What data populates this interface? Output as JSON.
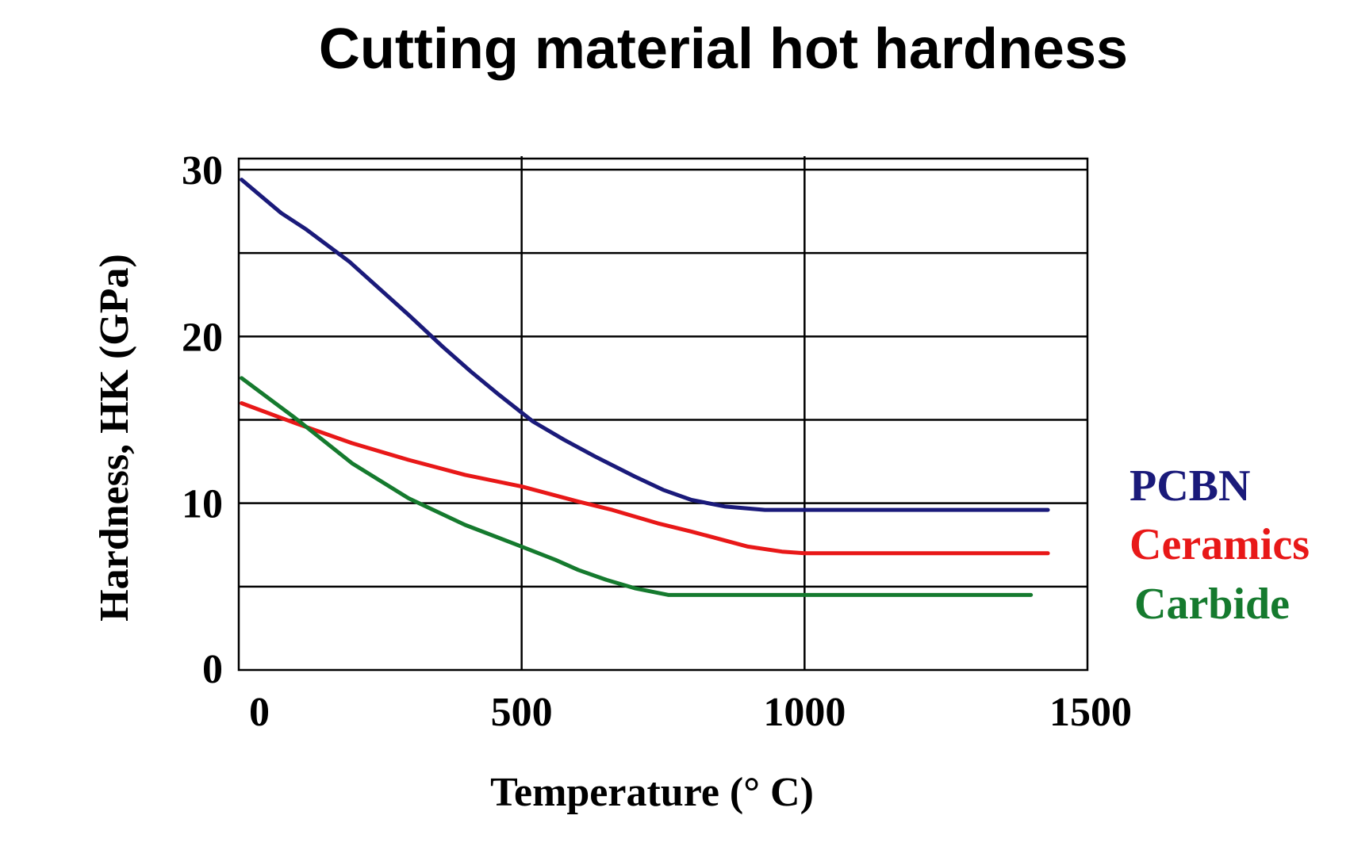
{
  "chart_data": {
    "type": "line",
    "title": "Cutting material hot hardness",
    "xlabel": "Temperature (° C)",
    "ylabel": "Hardness, HK (GPa)",
    "xlim": [
      0,
      1500
    ],
    "ylim": [
      0,
      30
    ],
    "x_ticks": [
      0,
      500,
      1000,
      1500
    ],
    "x_tick_labels": [
      "0",
      "500",
      "1000",
      "1500"
    ],
    "y_ticks": [
      0,
      10,
      20,
      30
    ],
    "y_tick_labels": [
      "0",
      "10",
      "20",
      "30"
    ],
    "y_gridlines": [
      5,
      10,
      15,
      20,
      25,
      30
    ],
    "x_gridlines": [
      500,
      1000,
      1500
    ],
    "grid": true,
    "legend_position": "right",
    "series": [
      {
        "name": "PCBN",
        "color": "#1a1a7a",
        "x": [
          5,
          40,
          75,
          120,
          195,
          300,
          360,
          410,
          460,
          520,
          575,
          630,
          700,
          750,
          800,
          860,
          930,
          1000,
          1100,
          1200,
          1300,
          1430
        ],
        "y": [
          29.4,
          28.4,
          27.4,
          26.4,
          24.5,
          21.3,
          19.4,
          17.9,
          16.5,
          14.9,
          13.8,
          12.8,
          11.6,
          10.8,
          10.2,
          9.8,
          9.6,
          9.6,
          9.6,
          9.6,
          9.6,
          9.6
        ]
      },
      {
        "name": "Ceramics",
        "color": "#e81818",
        "x": [
          5,
          100,
          200,
          300,
          400,
          500,
          600,
          660,
          740,
          800,
          900,
          960,
          1000,
          1100,
          1200,
          1300,
          1430
        ],
        "y": [
          16.0,
          14.8,
          13.6,
          12.6,
          11.7,
          11.0,
          10.1,
          9.6,
          8.8,
          8.3,
          7.4,
          7.1,
          7.0,
          7.0,
          7.0,
          7.0,
          7.0
        ]
      },
      {
        "name": "Carbide",
        "color": "#157a2e",
        "x": [
          5,
          100,
          200,
          300,
          400,
          500,
          560,
          600,
          650,
          700,
          760,
          850,
          1000,
          1200,
          1400
        ],
        "y": [
          17.5,
          15.1,
          12.4,
          10.3,
          8.7,
          7.4,
          6.6,
          6.0,
          5.4,
          4.9,
          4.5,
          4.5,
          4.5,
          4.5,
          4.5
        ]
      }
    ]
  }
}
